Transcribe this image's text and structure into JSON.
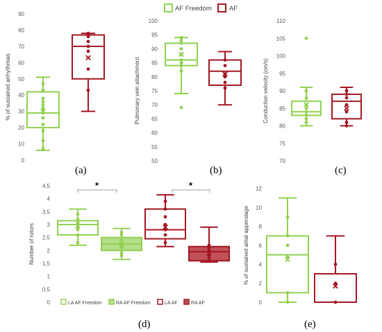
{
  "colors": {
    "af_freedom": "#92d050",
    "af_freedom_light": "#b5de88",
    "af": "#a31621",
    "af_light": "#c0505a",
    "grid_text": "#595959"
  },
  "legend_top": {
    "items": [
      {
        "label": "AF Freedom",
        "color": "#92d050"
      },
      {
        "label": "AF",
        "color": "#a31621"
      }
    ]
  },
  "legend_d": {
    "items": [
      {
        "label": "LA AF Freedom",
        "color": "#92d050",
        "filled": false
      },
      {
        "label": "RA AF Freedom",
        "color": "#92d050",
        "filled": true
      },
      {
        "label": "LA AF",
        "color": "#a31621",
        "filled": false
      },
      {
        "label": "RA AF",
        "color": "#a31621",
        "filled": true
      }
    ]
  },
  "panel_labels": {
    "a": "(a)",
    "b": "(b)",
    "c": "(c)",
    "d": "(d)",
    "e": "(e)"
  },
  "significance": {
    "mark": "*"
  },
  "chart_data": [
    {
      "id": "a",
      "type": "box",
      "ylabel": "% of sustained arrhythmias",
      "ylim": [
        0,
        90
      ],
      "yticks": [
        "0",
        "10",
        "20",
        "30",
        "40",
        "50",
        "60",
        "70",
        "80",
        "90"
      ],
      "grid": false,
      "series": [
        {
          "name": "AF Freedom",
          "color_key": "af_freedom",
          "min": 6,
          "q1": 20,
          "median": 29,
          "q3": 42,
          "max": 51,
          "mean": 30,
          "points": [
            7,
            12,
            18,
            22,
            26,
            29,
            30,
            32,
            34,
            36,
            38,
            43,
            47
          ]
        },
        {
          "name": "AF",
          "color_key": "af",
          "min": 30,
          "q1": 50,
          "median": 70,
          "q3": 77,
          "max": 78,
          "mean": 63,
          "points": [
            43,
            56,
            67,
            70,
            73,
            76,
            78
          ]
        }
      ]
    },
    {
      "id": "b",
      "type": "box",
      "ylabel": "Pulmonary vein attachment",
      "ylim": [
        50,
        100
      ],
      "yticks": [
        "50",
        "55",
        "60",
        "65",
        "70",
        "75",
        "80",
        "85",
        "90",
        "95",
        "100"
      ],
      "grid": false,
      "series": [
        {
          "name": "AF Freedom",
          "color_key": "af_freedom",
          "min": 74,
          "q1": 84,
          "median": 86,
          "q3": 92,
          "max": 94,
          "mean": 88,
          "points": [
            69,
            82,
            84,
            85,
            86,
            88,
            90,
            92,
            93,
            94
          ]
        },
        {
          "name": "AF",
          "color_key": "af",
          "min": 70,
          "q1": 77,
          "median": 82,
          "q3": 86,
          "max": 89,
          "mean": 81,
          "points": [
            76,
            78,
            80,
            81,
            84,
            86
          ]
        }
      ]
    },
    {
      "id": "c",
      "type": "box",
      "ylabel": "Conduction velocity (cm/s)",
      "ylim": [
        70,
        110
      ],
      "yticks": [
        "70",
        "75",
        "80",
        "85",
        "90",
        "95",
        "100",
        "105",
        "110"
      ],
      "grid": false,
      "series": [
        {
          "name": "AF Freedom",
          "color_key": "af_freedom",
          "min": 80,
          "q1": 83,
          "median": 84,
          "q3": 87,
          "max": 91,
          "mean": 86,
          "points": [
            105,
            81,
            82,
            83,
            84,
            85,
            86,
            88,
            90
          ]
        },
        {
          "name": "AF",
          "color_key": "af",
          "min": 80,
          "q1": 82,
          "median": 87,
          "q3": 89,
          "max": 91,
          "mean": 85,
          "points": [
            80,
            81,
            84,
            86,
            88,
            89,
            90
          ]
        }
      ]
    },
    {
      "id": "d",
      "type": "box",
      "ylabel": "Number of rotors",
      "ylim": [
        0,
        4.5
      ],
      "yticks": [
        "0",
        "0,5",
        "1",
        "1,5",
        "2",
        "2,5",
        "3",
        "3,5",
        "4",
        "4,5"
      ],
      "grid": false,
      "series": [
        {
          "name": "LA AF Freedom",
          "color_key": "af_freedom",
          "filled": false,
          "min": 2.2,
          "q1": 2.6,
          "median": 3.0,
          "q3": 3.15,
          "max": 3.6,
          "mean": 2.95,
          "points": [
            2.3,
            2.6,
            2.8,
            2.9,
            3.0,
            3.1,
            3.2,
            3.4
          ]
        },
        {
          "name": "RA AF Freedom",
          "color_key": "af_freedom",
          "filled": true,
          "min": 1.65,
          "q1": 2.0,
          "median": 2.25,
          "q3": 2.5,
          "max": 2.85,
          "mean": 2.25,
          "points": [
            1.8,
            1.9,
            2.1,
            2.2,
            2.4,
            2.6,
            2.7
          ]
        },
        {
          "name": "LA AF",
          "color_key": "af",
          "filled": false,
          "min": 2.15,
          "q1": 2.45,
          "median": 2.8,
          "q3": 3.6,
          "max": 4.15,
          "mean": 2.9,
          "points": [
            2.3,
            2.6,
            2.8,
            3.0,
            3.3,
            3.6,
            3.9
          ]
        },
        {
          "name": "RA AF",
          "color_key": "af",
          "filled": true,
          "min": 1.55,
          "q1": 1.6,
          "median": 1.95,
          "q3": 2.15,
          "max": 2.9,
          "mean": 1.9,
          "points": [
            1.6,
            1.7,
            1.8,
            2.0,
            2.1,
            2.2
          ]
        }
      ]
    },
    {
      "id": "e",
      "type": "box",
      "ylabel": "% of sustained atrial appendage",
      "ylim": [
        0,
        12
      ],
      "yticks": [
        "0",
        "2",
        "4",
        "6",
        "8",
        "10",
        "12"
      ],
      "grid": false,
      "series": [
        {
          "name": "AF Freedom",
          "color_key": "af_freedom",
          "min": 0,
          "q1": 1,
          "median": 5,
          "q3": 7,
          "max": 11,
          "mean": 4.5,
          "points": [
            0,
            1,
            4.8,
            6,
            7,
            9
          ]
        },
        {
          "name": "AF",
          "color_key": "af",
          "min": 0,
          "q1": 0,
          "median": 0,
          "q3": 3,
          "max": 7,
          "mean": 1.7,
          "points": [
            0,
            2,
            4
          ]
        }
      ]
    }
  ]
}
